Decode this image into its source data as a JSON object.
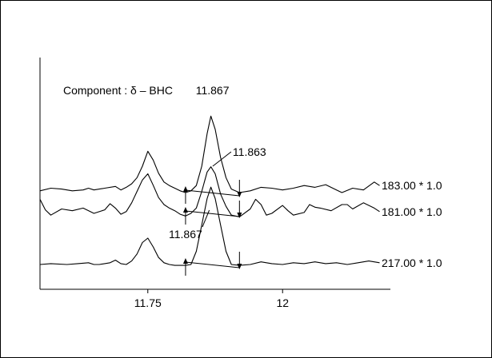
{
  "chart_data": {
    "type": "line",
    "title": "Component : δ – BHC",
    "xlabel": "",
    "ylabel": "",
    "xlim": [
      11.55,
      12.2
    ],
    "x_ticks": [
      11.75,
      12
    ],
    "x_tick_labels": [
      "11.75",
      "12"
    ],
    "grid": false,
    "series": [
      {
        "name": "183.00 * 1.0",
        "baseline": 0.58,
        "points": [
          [
            11.55,
            0.6
          ],
          [
            11.57,
            0.63
          ],
          [
            11.59,
            0.62
          ],
          [
            11.61,
            0.6
          ],
          [
            11.63,
            0.61
          ],
          [
            11.64,
            0.63
          ],
          [
            11.65,
            0.61
          ],
          [
            11.67,
            0.63
          ],
          [
            11.69,
            0.65
          ],
          [
            11.7,
            0.61
          ],
          [
            11.71,
            0.64
          ],
          [
            11.72,
            0.68
          ],
          [
            11.73,
            0.75
          ],
          [
            11.74,
            0.88
          ],
          [
            11.75,
            1.05
          ],
          [
            11.76,
            0.95
          ],
          [
            11.77,
            0.8
          ],
          [
            11.78,
            0.7
          ],
          [
            11.79,
            0.66
          ],
          [
            11.8,
            0.63
          ],
          [
            11.81,
            0.6
          ],
          [
            11.82,
            0.58
          ],
          [
            11.83,
            0.6
          ],
          [
            11.84,
            0.66
          ],
          [
            11.85,
            0.88
          ],
          [
            11.86,
            1.25
          ],
          [
            11.867,
            1.45
          ],
          [
            11.875,
            1.3
          ],
          [
            11.885,
            0.98
          ],
          [
            11.895,
            0.75
          ],
          [
            11.905,
            0.62
          ],
          [
            11.92,
            0.58
          ],
          [
            11.94,
            0.6
          ],
          [
            11.96,
            0.64
          ],
          [
            11.98,
            0.63
          ],
          [
            12.0,
            0.61
          ],
          [
            12.02,
            0.63
          ],
          [
            12.04,
            0.66
          ],
          [
            12.06,
            0.64
          ],
          [
            12.08,
            0.67
          ],
          [
            12.1,
            0.61
          ],
          [
            12.11,
            0.58
          ],
          [
            12.13,
            0.63
          ],
          [
            12.15,
            0.61
          ],
          [
            12.17,
            0.7
          ],
          [
            12.18,
            0.66
          ]
        ]
      },
      {
        "name": "181.00 * 1.0",
        "baseline": 0.5,
        "points": [
          [
            11.55,
            0.66
          ],
          [
            11.56,
            0.54
          ],
          [
            11.57,
            0.48
          ],
          [
            11.59,
            0.55
          ],
          [
            11.61,
            0.53
          ],
          [
            11.63,
            0.56
          ],
          [
            11.65,
            0.5
          ],
          [
            11.67,
            0.54
          ],
          [
            11.68,
            0.61
          ],
          [
            11.69,
            0.56
          ],
          [
            11.7,
            0.49
          ],
          [
            11.71,
            0.52
          ],
          [
            11.72,
            0.62
          ],
          [
            11.73,
            0.75
          ],
          [
            11.74,
            0.88
          ],
          [
            11.75,
            0.95
          ],
          [
            11.76,
            0.82
          ],
          [
            11.77,
            0.68
          ],
          [
            11.78,
            0.6
          ],
          [
            11.79,
            0.56
          ],
          [
            11.8,
            0.53
          ],
          [
            11.81,
            0.49
          ],
          [
            11.82,
            0.47
          ],
          [
            11.83,
            0.5
          ],
          [
            11.84,
            0.56
          ],
          [
            11.85,
            0.75
          ],
          [
            11.86,
            0.97
          ],
          [
            11.867,
            1.03
          ],
          [
            11.875,
            0.95
          ],
          [
            11.885,
            0.72
          ],
          [
            11.895,
            0.58
          ],
          [
            11.905,
            0.48
          ],
          [
            11.92,
            0.46
          ],
          [
            11.94,
            0.55
          ],
          [
            11.95,
            0.66
          ],
          [
            11.96,
            0.6
          ],
          [
            11.97,
            0.48
          ],
          [
            11.98,
            0.5
          ],
          [
            12.0,
            0.59
          ],
          [
            12.01,
            0.53
          ],
          [
            12.02,
            0.48
          ],
          [
            12.04,
            0.51
          ],
          [
            12.05,
            0.6
          ],
          [
            12.06,
            0.57
          ],
          [
            12.07,
            0.56
          ],
          [
            12.09,
            0.53
          ],
          [
            12.11,
            0.6
          ],
          [
            12.12,
            0.6
          ],
          [
            12.13,
            0.55
          ],
          [
            12.15,
            0.62
          ],
          [
            12.17,
            0.56
          ],
          [
            12.18,
            0.52
          ]
        ]
      },
      {
        "name": "217.00 * 1.0",
        "baseline": 0.1,
        "points": [
          [
            11.55,
            0.1
          ],
          [
            11.57,
            0.11
          ],
          [
            11.6,
            0.1
          ],
          [
            11.62,
            0.11
          ],
          [
            11.64,
            0.12
          ],
          [
            11.65,
            0.1
          ],
          [
            11.66,
            0.1
          ],
          [
            11.68,
            0.12
          ],
          [
            11.69,
            0.15
          ],
          [
            11.7,
            0.11
          ],
          [
            11.71,
            0.1
          ],
          [
            11.72,
            0.14
          ],
          [
            11.73,
            0.22
          ],
          [
            11.74,
            0.35
          ],
          [
            11.75,
            0.4
          ],
          [
            11.76,
            0.3
          ],
          [
            11.77,
            0.18
          ],
          [
            11.78,
            0.12
          ],
          [
            11.79,
            0.1
          ],
          [
            11.8,
            0.09
          ],
          [
            11.82,
            0.09
          ],
          [
            11.83,
            0.1
          ],
          [
            11.84,
            0.25
          ],
          [
            11.85,
            0.55
          ],
          [
            11.86,
            0.85
          ],
          [
            11.867,
            0.98
          ],
          [
            11.875,
            0.85
          ],
          [
            11.885,
            0.55
          ],
          [
            11.895,
            0.25
          ],
          [
            11.905,
            0.1
          ],
          [
            11.92,
            0.09
          ],
          [
            11.94,
            0.1
          ],
          [
            11.96,
            0.13
          ],
          [
            11.98,
            0.11
          ],
          [
            12.0,
            0.1
          ],
          [
            12.02,
            0.12
          ],
          [
            12.04,
            0.11
          ],
          [
            12.06,
            0.13
          ],
          [
            12.08,
            0.11
          ],
          [
            12.1,
            0.12
          ],
          [
            12.12,
            0.1
          ],
          [
            12.14,
            0.12
          ],
          [
            12.16,
            0.14
          ],
          [
            12.18,
            0.12
          ]
        ]
      }
    ],
    "peak_labels": [
      {
        "text": "11.867",
        "x": 11.867,
        "series": 0
      },
      {
        "text": "11.863",
        "x": 11.863,
        "series": 1
      },
      {
        "text": "11.867",
        "x": 11.867,
        "series": 2
      }
    ],
    "integration_markers": [
      {
        "series": 0,
        "start": 11.82,
        "end": 11.92
      },
      {
        "series": 1,
        "start": 11.82,
        "end": 11.92
      },
      {
        "series": 2,
        "start": 11.82,
        "end": 11.92
      }
    ]
  }
}
